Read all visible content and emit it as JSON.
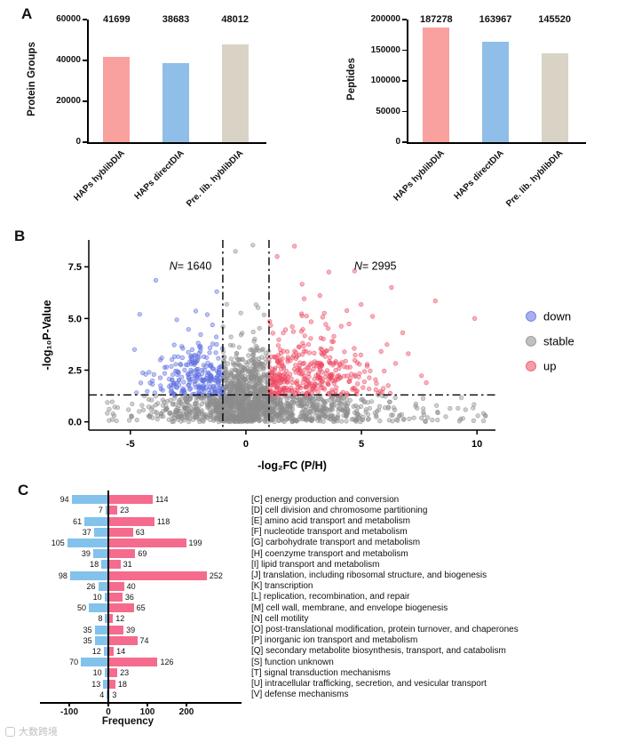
{
  "panels": {
    "a": "A",
    "b": "B",
    "c": "C"
  },
  "watermark": {
    "text": "大数跨境"
  },
  "chart_data": [
    {
      "id": "protein_groups",
      "type": "bar",
      "ylabel": "Protein Groups",
      "ylim": [
        0,
        60000
      ],
      "yticks": [
        0,
        20000,
        40000,
        60000
      ],
      "categories": [
        "HAPs hyblibDIA",
        "HAPs directDIA",
        "Pre. lib. hyblibDIA"
      ],
      "values": [
        41699,
        38683,
        48012
      ],
      "bar_colors": [
        "#F8A19F",
        "#8FBFE8",
        "#D8D3C5"
      ]
    },
    {
      "id": "peptides",
      "type": "bar",
      "ylabel": "Peptides",
      "ylim": [
        0,
        200000
      ],
      "yticks": [
        0,
        50000,
        100000,
        150000,
        200000
      ],
      "categories": [
        "HAPs hyblibDIA",
        "HAPs directDIA",
        "Pre. lib. hyblibDIA"
      ],
      "values": [
        187278,
        163967,
        145520
      ],
      "bar_colors": [
        "#F8A19F",
        "#8FBFE8",
        "#D8D3C5"
      ]
    },
    {
      "id": "volcano",
      "type": "scatter",
      "xlabel": "-log₂FC (P/H)",
      "ylabel": "-log₁₀P-Value",
      "xlim": [
        -6.8,
        10.8
      ],
      "ylim": [
        -0.4,
        8.8
      ],
      "xticks": [
        -5,
        0,
        5,
        10
      ],
      "yticks": [
        0,
        2.5,
        5,
        7.5
      ],
      "yticklabels": [
        "0.0",
        "2.5",
        "5.0",
        "7.5"
      ],
      "thresholds": {
        "x": [
          -1,
          1
        ],
        "y": 1.3
      },
      "annotations": [
        {
          "text": "N= 1640",
          "x": -2.4,
          "y": 7.35
        },
        {
          "text": "N= 2995",
          "x": 5.6,
          "y": 7.35
        }
      ],
      "legend": [
        {
          "label": "down",
          "color": "#5F6FE0"
        },
        {
          "label": "stable",
          "color": "#8C8C8C"
        },
        {
          "label": "up",
          "color": "#EE4B63"
        }
      ],
      "counts": {
        "down": 1640,
        "up": 2995
      }
    },
    {
      "id": "cog_categories",
      "type": "diverging_bar",
      "xlabel": "Frequency",
      "xticks": [
        -100,
        0,
        100,
        200
      ],
      "series": [
        {
          "name": "down",
          "color": "#83C2EA"
        },
        {
          "name": "up",
          "color": "#F56B8D"
        }
      ],
      "rows": [
        {
          "label": "[C] energy production and conversion",
          "down": 94,
          "up": 114
        },
        {
          "label": "[D] cell division and chromosome partitioning",
          "down": 7,
          "up": 23
        },
        {
          "label": "[E] amino acid transport and metabolism",
          "down": 61,
          "up": 118
        },
        {
          "label": "[F] nucleotide transport and metabolism",
          "down": 37,
          "up": 63
        },
        {
          "label": "[G] carbohydrate transport and metabolism",
          "down": 105,
          "up": 199
        },
        {
          "label": "[H] coenzyme transport and metabolism",
          "down": 39,
          "up": 69
        },
        {
          "label": "[I] lipid transport and metabolism",
          "down": 18,
          "up": 31
        },
        {
          "label": "[J] translation, including ribosomal structure, and biogenesis",
          "down": 98,
          "up": 252
        },
        {
          "label": "[K] transcription",
          "down": 26,
          "up": 40
        },
        {
          "label": "[L] replication, recombination, and repair",
          "down": 10,
          "up": 36
        },
        {
          "label": "[M] cell wall, membrane, and envelope biogenesis",
          "down": 50,
          "up": 65
        },
        {
          "label": "[N] cell motility",
          "down": 8,
          "up": 12
        },
        {
          "label": "[O] post-translational modification, protein turnover, and chaperones",
          "down": 35,
          "up": 39
        },
        {
          "label": "[P] inorganic ion transport and metabolism",
          "down": 35,
          "up": 74
        },
        {
          "label": "[Q] secondary metabolite biosynthesis, transport, and catabolism",
          "down": 12,
          "up": 14
        },
        {
          "label": "[S] function unknown",
          "down": 70,
          "up": 126
        },
        {
          "label": "[T] signal transduction mechanisms",
          "down": 10,
          "up": 23
        },
        {
          "label": "[U] intracellular trafficking, secretion, and vesicular transport",
          "down": 13,
          "up": 18
        },
        {
          "label": "[V] defense mechanisms",
          "down": 4,
          "up": 3
        }
      ]
    }
  ]
}
